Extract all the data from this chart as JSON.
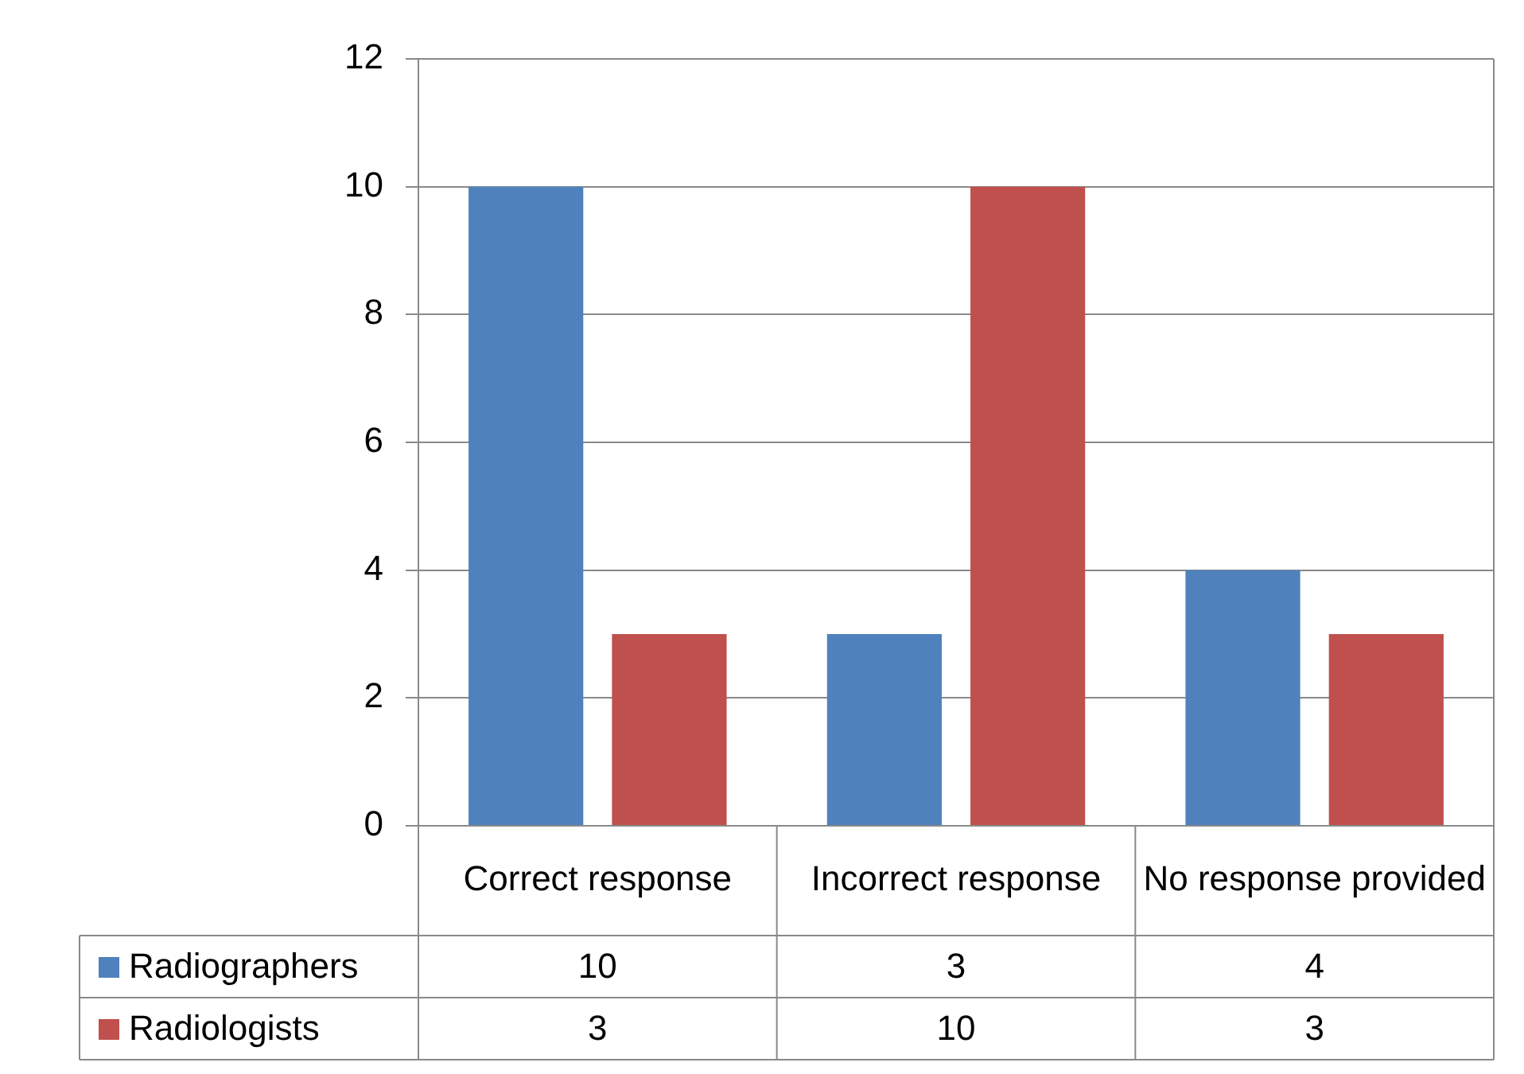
{
  "chart_data": {
    "type": "bar",
    "categories": [
      "Correct response",
      "Incorrect response",
      "No response provided"
    ],
    "series": [
      {
        "name": "Radiographers",
        "color": "#4f81bd",
        "values": [
          10,
          3,
          4
        ]
      },
      {
        "name": "Radiologists",
        "color": "#c0504d",
        "values": [
          3,
          10,
          3
        ]
      }
    ],
    "ylim": [
      0,
      12
    ],
    "yticks": [
      0,
      2,
      4,
      6,
      8,
      10,
      12
    ],
    "grid": "y",
    "legend": "bottom",
    "data_labels": true
  }
}
